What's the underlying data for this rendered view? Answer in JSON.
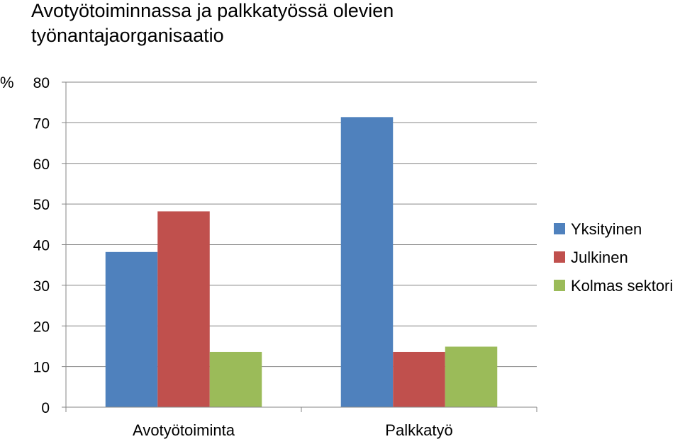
{
  "chart_data": {
    "type": "bar",
    "title_lines": [
      "Avotyötoiminnassa ja palkkatyössä olevien",
      "työnantajaorganisaatio"
    ],
    "ylabel": "%",
    "xlabel": "",
    "ylim": [
      0,
      80
    ],
    "yticks": [
      0,
      10,
      20,
      30,
      40,
      50,
      60,
      70,
      80
    ],
    "grid": true,
    "legend_position": "right",
    "categories": [
      "Avotyötoiminta",
      "Palkkatyö"
    ],
    "series": [
      {
        "name": "Yksityinen",
        "color": "#4F81BD",
        "values": [
          38.2,
          71.4
        ]
      },
      {
        "name": "Julkinen",
        "color": "#C0504D",
        "values": [
          48.2,
          13.6
        ]
      },
      {
        "name": "Kolmas sektori",
        "color": "#9BBB59",
        "values": [
          13.6,
          14.9
        ]
      }
    ]
  }
}
